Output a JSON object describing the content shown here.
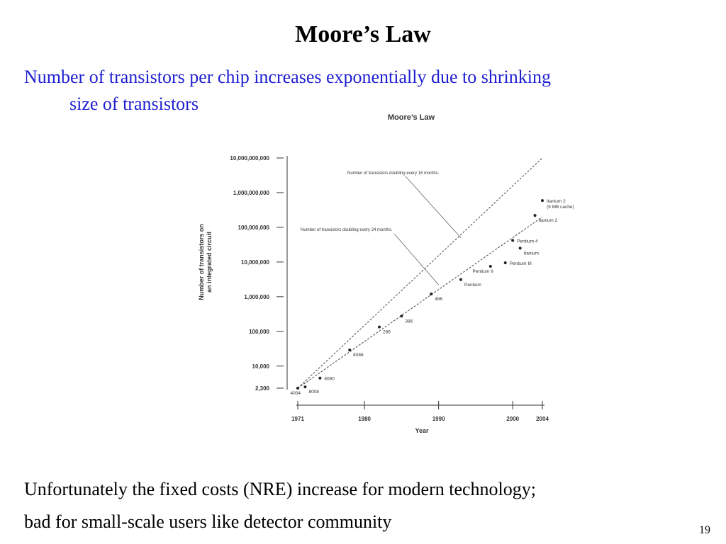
{
  "slide": {
    "title": "Moore’s Law",
    "subtitle_line1": "Number of transistors per chip increases exponentially due to shrinking",
    "subtitle_line2": "size of transistors",
    "bottom_line1": "Unfortunately the fixed costs (NRE) increase for modern technology;",
    "bottom_line2": "bad for small-scale users like detector community",
    "page_number": "19"
  },
  "colors": {
    "title": "#000000",
    "subtitle": "#1f1fd1",
    "chart_ink": "#333333"
  },
  "chart_data": {
    "type": "scatter",
    "title": "Moore’s Law",
    "xlabel": "Year",
    "ylabel": "Number of transistors on\nan integrated circuit",
    "y_scale": "log",
    "xlim": [
      1971,
      2004
    ],
    "ylim": [
      2300,
      10000000000
    ],
    "grid": false,
    "x_ticks": [
      {
        "value": 1971,
        "label": "1971"
      },
      {
        "value": 1980,
        "label": "1980"
      },
      {
        "value": 1990,
        "label": "1990"
      },
      {
        "value": 2000,
        "label": "2000"
      },
      {
        "value": 2004,
        "label": "2004"
      }
    ],
    "y_ticks": [
      {
        "value": 2300,
        "label": "2,300"
      },
      {
        "value": 10000,
        "label": "10,000"
      },
      {
        "value": 100000,
        "label": "100,000"
      },
      {
        "value": 1000000,
        "label": "1,000,000"
      },
      {
        "value": 10000000,
        "label": "10,000,000"
      },
      {
        "value": 100000000,
        "label": "100,000,000"
      },
      {
        "value": 1000000000,
        "label": "1,000,000,000"
      },
      {
        "value": 10000000000,
        "label": "10,000,000,000"
      }
    ],
    "points": [
      {
        "label": "4004",
        "x": 1971,
        "y": 2300,
        "label_pos": "below-left"
      },
      {
        "label": "8008",
        "x": 1972,
        "y": 2500,
        "label_pos": "below-right"
      },
      {
        "label": "8080",
        "x": 1974,
        "y": 4500,
        "label_pos": "right"
      },
      {
        "label": "8086",
        "x": 1978,
        "y": 29000,
        "label_pos": "below-right"
      },
      {
        "label": "286",
        "x": 1982,
        "y": 134000,
        "label_pos": "below-right"
      },
      {
        "label": "386",
        "x": 1985,
        "y": 275000,
        "label_pos": "below-right"
      },
      {
        "label": "486",
        "x": 1989,
        "y": 1200000,
        "label_pos": "below-right"
      },
      {
        "label": "Pentium",
        "x": 1993,
        "y": 3100000,
        "label_pos": "below-right"
      },
      {
        "label": "Pentium II",
        "x": 1997,
        "y": 7500000,
        "label_pos": "below-left"
      },
      {
        "label": "Pentium III",
        "x": 1999,
        "y": 9500000,
        "label_pos": "right"
      },
      {
        "label": "Pentium 4",
        "x": 2000,
        "y": 42000000,
        "label_pos": "right"
      },
      {
        "label": "Itanium",
        "x": 2001,
        "y": 25000000,
        "label_pos": "below-right"
      },
      {
        "label": "Itanium 2",
        "x": 2003,
        "y": 220000000,
        "label_pos": "below-right"
      },
      {
        "label": "Itanium 2\n(9 MB cache)",
        "x": 2004,
        "y": 592000000,
        "label_pos": "right"
      }
    ],
    "trend_lines": [
      {
        "name": "Number of transistors doubling every 18 months.",
        "x": [
          1971,
          2004
        ],
        "y": [
          2300,
          10000000000
        ],
        "style": "dashed"
      },
      {
        "name": "Number of transistors doubling every 24 months.",
        "x": [
          1971,
          2004
        ],
        "y": [
          2300,
          200000000
        ],
        "style": "dashed"
      }
    ],
    "annotations": [
      {
        "text": "Number of transistors doubling every 18 months.",
        "target_x": 1993,
        "target_y": 50000000
      },
      {
        "text": "Number of transistors doubling every 24 months.",
        "target_x": 1990,
        "target_y": 2200000
      }
    ]
  }
}
